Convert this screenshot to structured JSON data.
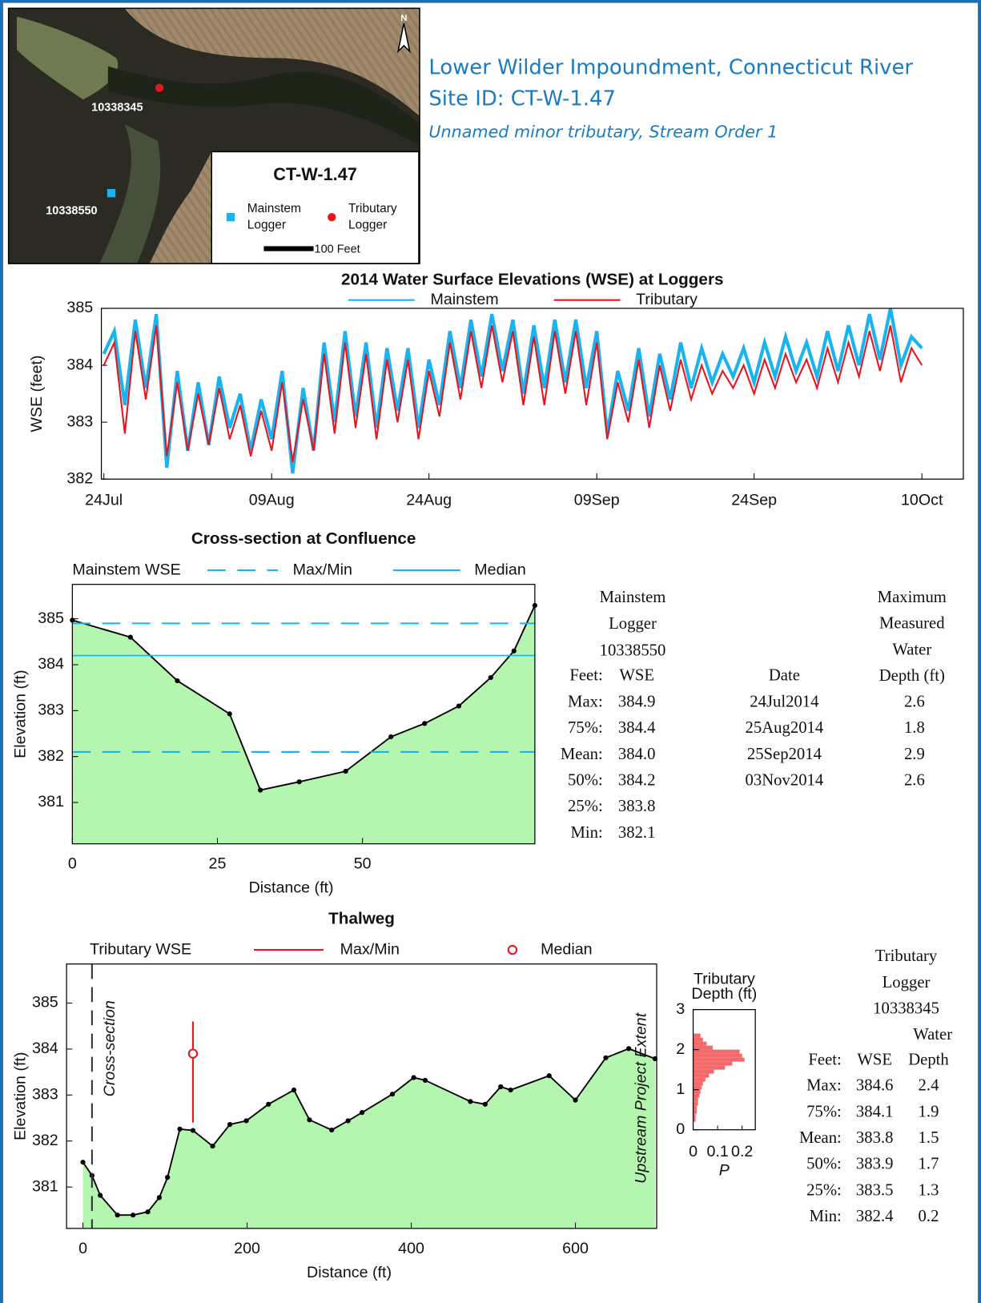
{
  "header": {
    "title": "Lower Wilder Impoundment, Connecticut River",
    "site_id": "Site ID: CT-W-1.47",
    "subtitle": "Unnamed minor tributary, Stream Order 1"
  },
  "map": {
    "north": "N",
    "tributary_logger_id": "10338345",
    "mainstem_logger_id": "10338550",
    "legend_title": "CT-W-1.47",
    "mainstem_legend": [
      "Mainstem",
      "Logger"
    ],
    "tributary_legend": [
      "Tributary",
      "Logger"
    ],
    "scale_label": "100 Feet",
    "mainstem_color": "#19b4f0",
    "tributary_color": "#e8141e"
  },
  "chart_data": [
    {
      "type": "line",
      "title": "2014 Water Surface Elevations (WSE) at Loggers",
      "y_label": "WSE (feet)",
      "x": [
        "24Jul",
        "25Jul",
        "26Jul",
        "27Jul",
        "28Jul",
        "29Jul",
        "30Jul",
        "31Jul",
        "01Aug",
        "02Aug",
        "03Aug",
        "04Aug",
        "05Aug",
        "06Aug",
        "07Aug",
        "08Aug",
        "09Aug",
        "10Aug",
        "11Aug",
        "12Aug",
        "13Aug",
        "14Aug",
        "15Aug",
        "16Aug",
        "17Aug",
        "18Aug",
        "19Aug",
        "20Aug",
        "21Aug",
        "22Aug",
        "23Aug",
        "24Aug",
        "25Aug",
        "26Aug",
        "27Aug",
        "28Aug",
        "29Aug",
        "30Aug",
        "31Aug",
        "01Sep",
        "02Sep",
        "03Sep",
        "04Sep",
        "05Sep",
        "06Sep",
        "07Sep",
        "08Sep",
        "09Sep",
        "10Sep",
        "11Sep",
        "12Sep",
        "13Sep",
        "14Sep",
        "15Sep",
        "16Sep",
        "17Sep",
        "18Sep",
        "19Sep",
        "20Sep",
        "21Sep",
        "22Sep",
        "23Sep",
        "24Sep",
        "25Sep",
        "26Sep",
        "27Sep",
        "28Sep",
        "29Sep",
        "30Sep",
        "01Oct",
        "02Oct",
        "03Oct",
        "04Oct",
        "05Oct",
        "06Oct",
        "07Oct",
        "08Oct",
        "09Oct",
        "10Oct"
      ],
      "xticks": [
        "24Jul",
        "09Aug",
        "24Aug",
        "09Sep",
        "24Sep",
        "10Oct"
      ],
      "ylim": [
        382,
        385
      ],
      "yticks": [
        382,
        383,
        384,
        385
      ],
      "series": [
        {
          "name": "Mainstem",
          "color": "#19b4f0",
          "values": [
            384.2,
            384.6,
            383.3,
            384.8,
            383.6,
            384.9,
            382.2,
            383.9,
            382.5,
            383.7,
            382.6,
            383.8,
            382.9,
            383.5,
            382.5,
            383.4,
            382.7,
            383.9,
            382.1,
            383.6,
            382.5,
            384.4,
            383.0,
            384.6,
            383.1,
            384.4,
            382.9,
            384.3,
            383.2,
            384.3,
            382.9,
            384.1,
            383.3,
            384.6,
            383.6,
            384.8,
            383.8,
            384.9,
            383.9,
            384.8,
            383.5,
            384.7,
            383.6,
            384.8,
            383.7,
            384.8,
            383.6,
            384.6,
            382.8,
            383.9,
            383.2,
            384.3,
            383.1,
            384.2,
            383.4,
            384.4,
            383.6,
            384.3,
            383.7,
            384.2,
            383.8,
            384.3,
            383.7,
            384.4,
            383.8,
            384.5,
            383.9,
            384.4,
            383.8,
            384.6,
            383.9,
            384.7,
            384.0,
            384.9,
            384.1,
            385.0,
            384.0,
            384.5,
            384.3
          ]
        },
        {
          "name": "Tributary",
          "color": "#e8141e",
          "values": [
            384.0,
            384.4,
            382.8,
            384.6,
            383.4,
            384.7,
            382.4,
            383.7,
            382.5,
            383.5,
            382.6,
            383.6,
            382.7,
            383.3,
            382.4,
            383.2,
            382.5,
            383.7,
            382.3,
            383.4,
            382.5,
            384.2,
            382.8,
            384.4,
            382.9,
            384.2,
            382.7,
            384.1,
            383.0,
            384.1,
            382.7,
            383.9,
            383.1,
            384.4,
            383.4,
            384.6,
            383.6,
            384.7,
            383.7,
            384.6,
            383.3,
            384.5,
            383.3,
            384.6,
            383.5,
            384.6,
            383.3,
            384.4,
            382.7,
            383.7,
            383.0,
            384.1,
            382.9,
            384.0,
            383.2,
            384.1,
            383.4,
            384.0,
            383.5,
            383.9,
            383.6,
            384.0,
            383.5,
            384.1,
            383.6,
            384.2,
            383.7,
            384.1,
            383.6,
            384.3,
            383.7,
            384.4,
            383.8,
            384.6,
            383.9,
            384.7,
            383.7,
            384.3,
            384.0
          ]
        }
      ]
    },
    {
      "type": "area",
      "title": "Cross-section at Confluence",
      "x_label": "Distance (ft)",
      "y_label": "Elevation (ft)",
      "legend_title": "Mainstem WSE",
      "legend": [
        "Max/Min",
        "Median"
      ],
      "x": [
        0,
        10,
        18.1,
        27.1,
        32.4,
        39.1,
        47.1,
        54.9,
        60.7,
        66.6,
        72.1,
        76.1,
        79.7
      ],
      "values": [
        384.97,
        384.6,
        383.65,
        382.93,
        381.27,
        381.45,
        381.68,
        382.43,
        382.72,
        383.1,
        383.72,
        384.3,
        385.29
      ],
      "xlim": [
        0,
        79.7
      ],
      "ylim": [
        380.1,
        385.75
      ],
      "xticks": [
        0,
        25,
        50
      ],
      "yticks": [
        381,
        382,
        383,
        384,
        385
      ],
      "fill_color": "#b4f5b0",
      "line_color": "#000000",
      "wse_color": "#19b4f0"
    },
    {
      "type": "area",
      "title": "Thalweg",
      "x_label": "Distance (ft)",
      "y_label": "Elevation (ft)",
      "legend_title": "Tributary WSE",
      "legend": [
        "Max/Min",
        "Median"
      ],
      "x": [
        0,
        11,
        21,
        42,
        61,
        79,
        93,
        103,
        118,
        134,
        158,
        179,
        199,
        226,
        257,
        276,
        303,
        323,
        340,
        377,
        403,
        417,
        472,
        490,
        509,
        521,
        568,
        600,
        637,
        665,
        697
      ],
      "values": [
        381.54,
        381.25,
        380.82,
        380.39,
        380.39,
        380.46,
        380.77,
        381.21,
        382.26,
        382.23,
        381.89,
        382.36,
        382.44,
        382.8,
        383.11,
        382.46,
        382.24,
        382.44,
        382.62,
        383.02,
        383.38,
        383.32,
        382.86,
        382.8,
        383.18,
        383.11,
        383.42,
        382.89,
        383.81,
        384.01,
        383.79
      ],
      "xlim": [
        -20,
        699
      ],
      "ylim": [
        380.1,
        385.85
      ],
      "xticks": [
        0,
        200,
        400,
        600
      ],
      "yticks": [
        381,
        382,
        383,
        384,
        385
      ],
      "fill_color": "#b4f5b0",
      "line_color": "#000000",
      "wse_color": "#e8141e",
      "wse_distance": 134,
      "cross_section_distance": 11,
      "annotations": [
        "Cross-section",
        "Upstream Project Extent"
      ]
    },
    {
      "type": "histogram",
      "title": [
        "Tributary",
        "Depth (ft)"
      ],
      "x_label": "P",
      "bins": [
        0.2,
        0.3,
        0.4,
        0.5,
        0.6,
        0.7,
        0.8,
        0.9,
        1.0,
        1.1,
        1.2,
        1.3,
        1.4,
        1.5,
        1.6,
        1.7,
        1.8,
        1.9,
        2.0,
        2.1,
        2.2,
        2.3,
        2.4
      ],
      "values": [
        0.01,
        0.01,
        0.015,
        0.015,
        0.02,
        0.02,
        0.025,
        0.03,
        0.035,
        0.04,
        0.05,
        0.065,
        0.085,
        0.13,
        0.16,
        0.21,
        0.2,
        0.19,
        0.08,
        0.055,
        0.04,
        0.03
      ],
      "xlim": [
        0,
        0.254
      ],
      "xticks": [
        0,
        0.1,
        0.2
      ],
      "ylim": [
        0,
        3
      ],
      "yticks": [
        0,
        1,
        2,
        3
      ],
      "color": "#f46a6a"
    }
  ],
  "mainstem_table": {
    "header": [
      "Mainstem",
      "Logger",
      "10338550"
    ],
    "columns": [
      "Feet:",
      "WSE"
    ],
    "rows": [
      [
        "Max:",
        "384.9"
      ],
      [
        "75%:",
        "384.4"
      ],
      [
        "Mean:",
        "384.0"
      ],
      [
        "50%:",
        "384.2"
      ],
      [
        "25%:",
        "383.8"
      ],
      [
        "Min:",
        "382.1"
      ]
    ]
  },
  "depth_table": {
    "header": [
      "Maximum",
      "Measured",
      "Water",
      "Depth (ft)"
    ],
    "columns": [
      "Date"
    ],
    "rows": [
      [
        "24Jul2014",
        "2.6"
      ],
      [
        "25Aug2014",
        "1.8"
      ],
      [
        "25Sep2014",
        "2.9"
      ],
      [
        "03Nov2014",
        "2.6"
      ]
    ]
  },
  "tributary_table": {
    "header": [
      "Tributary",
      "Logger",
      "10338345",
      "Water"
    ],
    "columns": [
      "Feet:",
      "WSE",
      "Depth"
    ],
    "rows": [
      [
        "Max:",
        "384.6",
        "2.4"
      ],
      [
        "75%:",
        "384.1",
        "1.9"
      ],
      [
        "Mean:",
        "383.8",
        "1.5"
      ],
      [
        "50%:",
        "383.9",
        "1.7"
      ],
      [
        "25%:",
        "383.5",
        "1.3"
      ],
      [
        "Min:",
        "382.4",
        "0.2"
      ]
    ]
  }
}
